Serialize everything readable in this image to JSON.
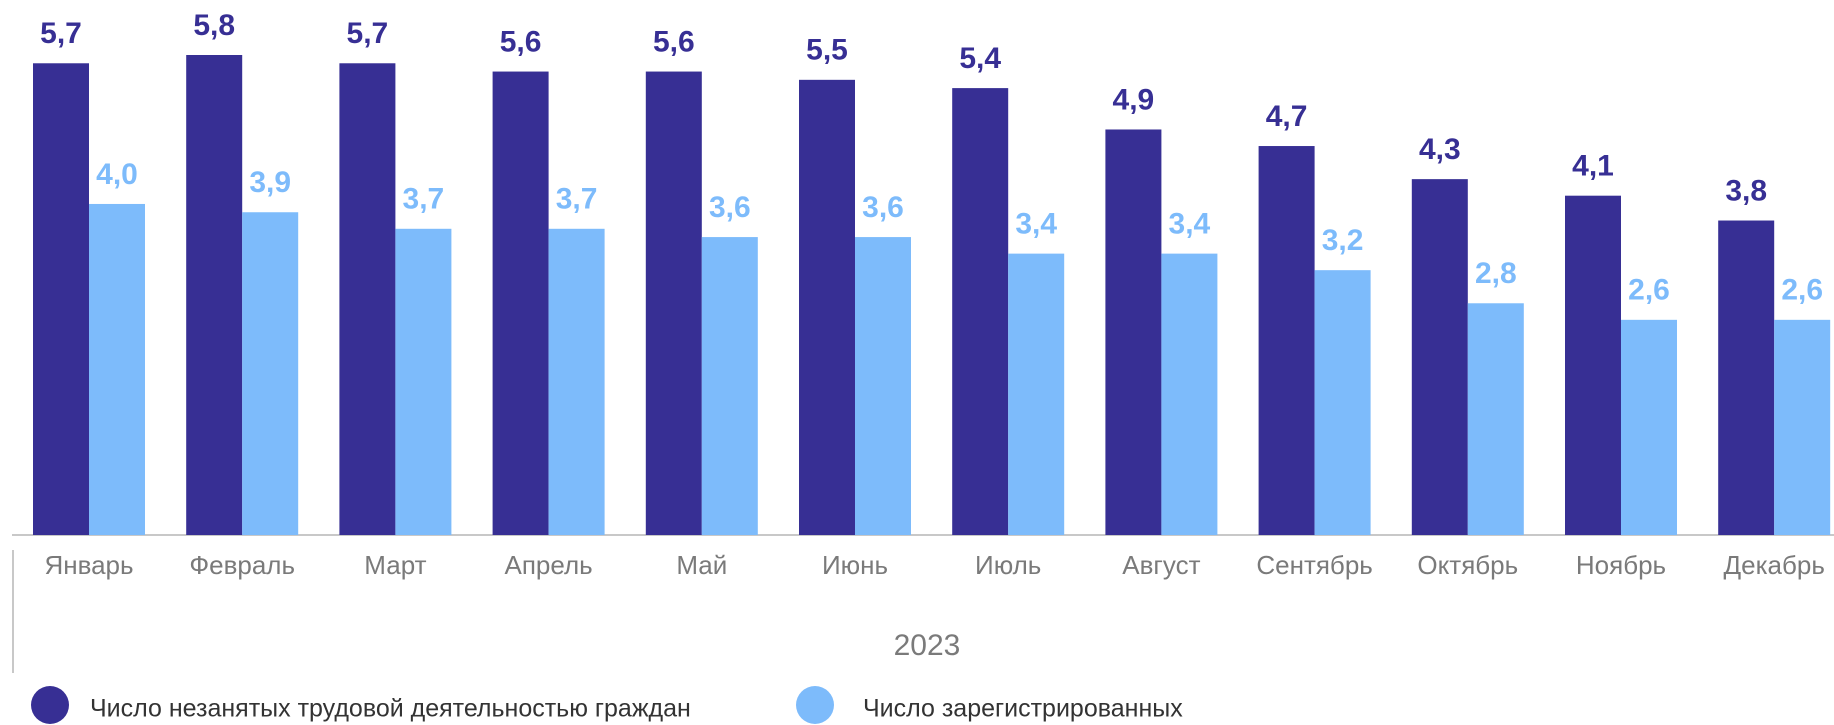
{
  "chart_data": {
    "type": "bar",
    "categories": [
      "Январь",
      "Февраль",
      "Март",
      "Апрель",
      "Май",
      "Июнь",
      "Июль",
      "Август",
      "Сентябрь",
      "Октябрь",
      "Ноябрь",
      "Декабрь"
    ],
    "x_label": "2023",
    "ylim": [
      0,
      5.8
    ],
    "series": [
      {
        "name": "Число незанятых трудовой деятельностью граждан",
        "color": "#372f94",
        "values": [
          5.7,
          5.8,
          5.7,
          5.6,
          5.6,
          5.5,
          5.4,
          4.9,
          4.7,
          4.3,
          4.1,
          3.8
        ],
        "value_labels": [
          "5,7",
          "5,8",
          "5,7",
          "5,6",
          "5,6",
          "5,5",
          "5,4",
          "4,9",
          "4,7",
          "4,3",
          "4,1",
          "3,8"
        ]
      },
      {
        "name": "Число зарегистрированных",
        "color": "#7dbbfb",
        "values": [
          4.0,
          3.9,
          3.7,
          3.7,
          3.6,
          3.6,
          3.4,
          3.4,
          3.2,
          2.8,
          2.6,
          2.6
        ],
        "value_labels": [
          "4,0",
          "3,9",
          "3,7",
          "3,7",
          "3,6",
          "3,6",
          "3,4",
          "3,4",
          "3,2",
          "2,8",
          "2,6",
          "2,6"
        ]
      }
    ]
  }
}
